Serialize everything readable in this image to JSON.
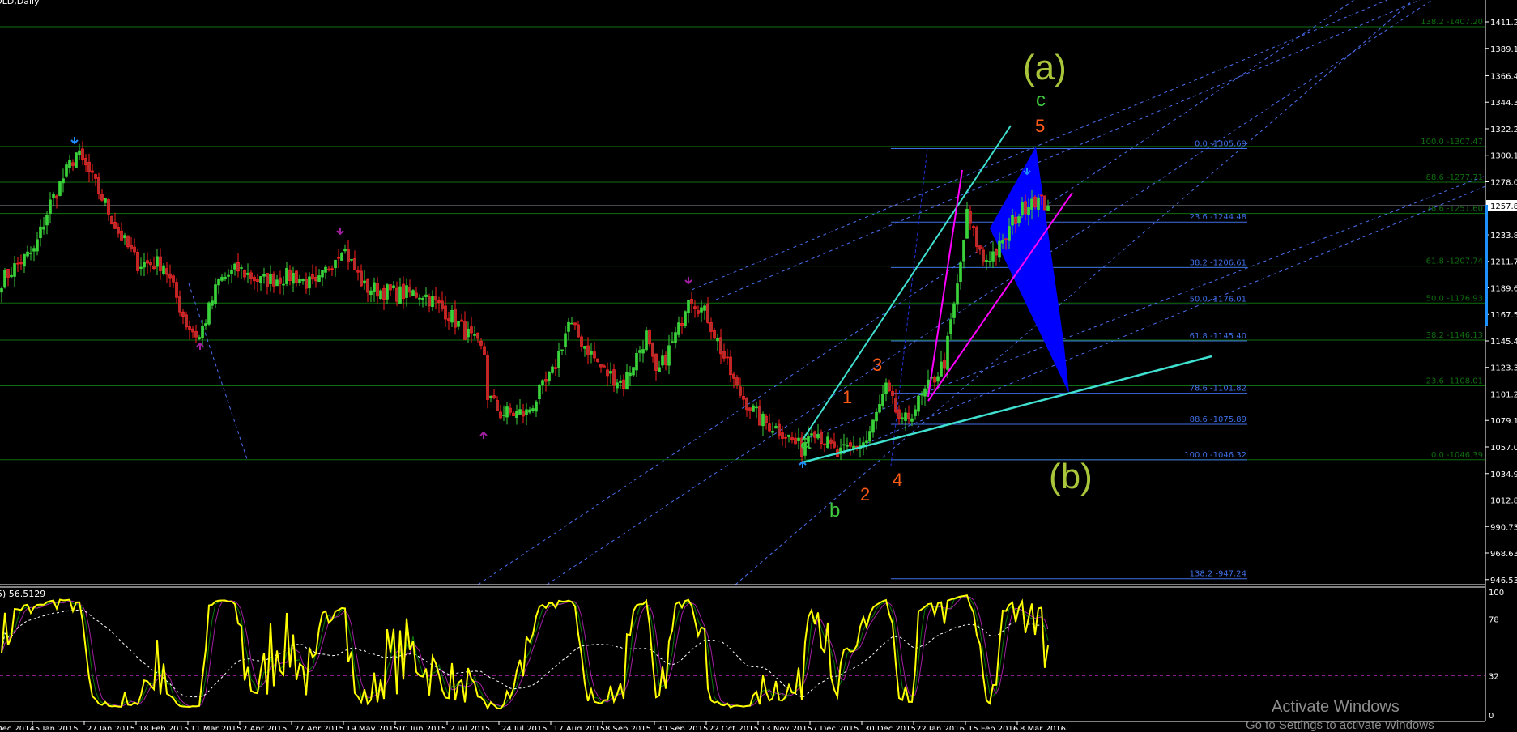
{
  "window": {
    "title": "OLD,Daily"
  },
  "indicator": {
    "label": "5) 56.5129",
    "value": 56.5129,
    "levels": [
      78,
      32
    ],
    "axis_labels": [
      "100",
      "78",
      "32",
      "0"
    ]
  },
  "wave_labels": {
    "big_a": "(a)",
    "big_b": "(b)",
    "small_a": "a",
    "small_b": "b",
    "small_c": "c",
    "n1": "1",
    "n2": "2",
    "n3": "3",
    "n4": "4",
    "n5": "5"
  },
  "watermark": {
    "line1": "Activate Windows",
    "line2": "Go to Settings to activate Windows"
  },
  "colors": {
    "background": "#000000",
    "bull": "#3ad23a",
    "bear": "#ff2020",
    "fib_green": "#0f6e0f",
    "fib_blue": "#3f6fe6",
    "trend_cyan": "#40e0d0",
    "trend_magenta": "#ff00ff",
    "pattern_blue": "#0000ff",
    "stoch_main": "#ffff00"
  },
  "chart_data": {
    "type": "candlestick",
    "title": "OLD,Daily",
    "ylim": [
      946.53,
      1420
    ],
    "grid": false,
    "y_tick_labels": [
      "1411.28",
      "1389.18",
      "1366.43",
      "1344.33",
      "1322.23",
      "1300.13",
      "1278.03",
      "1257.81",
      "1233.83",
      "1211.73",
      "1189.63",
      "1167.53",
      "1145.43",
      "1123.33",
      "1101.23",
      "1079.13",
      "1057.03",
      "1034.93",
      "1012.83",
      "990.73",
      "968.63",
      "946.53"
    ],
    "current_price": 1257.81,
    "x_tick_labels": [
      "12 Dec 2014",
      "5 Jan 2015",
      "27 Jan 2015",
      "18 Feb 2015",
      "11 Mar 2015",
      "2 Apr 2015",
      "27 Apr 2015",
      "19 May 2015",
      "10 Jun 2015",
      "2 Jul 2015",
      "24 Jul 2015",
      "17 Aug 2015",
      "8 Sep 2015",
      "30 Sep 2015",
      "22 Oct 2015",
      "13 Nov 2015",
      "7 Dec 2015",
      "30 Dec 2015",
      "22 Jan 2016",
      "15 Feb 2016",
      "8 Mar 2016"
    ],
    "approx_closes": [
      [
        "2014-12-22",
        1196
      ],
      [
        "2014-12-30",
        1212
      ],
      [
        "2015-01-05",
        1220
      ],
      [
        "2015-01-12",
        1260
      ],
      [
        "2015-01-22",
        1302
      ],
      [
        "2015-01-27",
        1290
      ],
      [
        "2015-02-03",
        1265
      ],
      [
        "2015-02-10",
        1236
      ],
      [
        "2015-02-18",
        1210
      ],
      [
        "2015-03-02",
        1210
      ],
      [
        "2015-03-11",
        1160
      ],
      [
        "2015-03-17",
        1148
      ],
      [
        "2015-03-25",
        1195
      ],
      [
        "2015-04-02",
        1205
      ],
      [
        "2015-04-13",
        1195
      ],
      [
        "2015-04-27",
        1200
      ],
      [
        "2015-05-06",
        1190
      ],
      [
        "2015-05-18",
        1225
      ],
      [
        "2015-05-27",
        1190
      ],
      [
        "2015-06-10",
        1185
      ],
      [
        "2015-06-22",
        1185
      ],
      [
        "2015-07-02",
        1168
      ],
      [
        "2015-07-17",
        1135
      ],
      [
        "2015-07-20",
        1100
      ],
      [
        "2015-07-24",
        1085
      ],
      [
        "2015-08-05",
        1085
      ],
      [
        "2015-08-17",
        1118
      ],
      [
        "2015-08-24",
        1160
      ],
      [
        "2015-09-08",
        1120
      ],
      [
        "2015-09-16",
        1110
      ],
      [
        "2015-09-25",
        1150
      ],
      [
        "2015-09-30",
        1115
      ],
      [
        "2015-10-09",
        1155
      ],
      [
        "2015-10-14",
        1185
      ],
      [
        "2015-10-22",
        1165
      ],
      [
        "2015-11-04",
        1105
      ],
      [
        "2015-11-13",
        1080
      ],
      [
        "2015-11-24",
        1070
      ],
      [
        "2015-12-02",
        1055
      ],
      [
        "2015-12-07",
        1075
      ],
      [
        "2015-12-17",
        1050
      ],
      [
        "2015-12-30",
        1062
      ],
      [
        "2016-01-07",
        1105
      ],
      [
        "2016-01-14",
        1075
      ],
      [
        "2016-01-22",
        1098
      ],
      [
        "2016-02-02",
        1128
      ],
      [
        "2016-02-08",
        1190
      ],
      [
        "2016-02-11",
        1250
      ],
      [
        "2016-02-18",
        1212
      ],
      [
        "2016-02-26",
        1225
      ],
      [
        "2016-03-02",
        1245
      ],
      [
        "2016-03-10",
        1265
      ],
      [
        "2016-03-17",
        1257.81
      ]
    ],
    "fib_green": [
      {
        "level": "138.2",
        "price": 1407.2
      },
      {
        "level": "100.0",
        "price": 1307.47
      },
      {
        "level": "88.6",
        "price": 1277.71
      },
      {
        "level": "78.6",
        "price": 1251.6
      },
      {
        "level": "61.8",
        "price": 1207.74
      },
      {
        "level": "50.0",
        "price": 1176.93
      },
      {
        "level": "38.2",
        "price": 1146.13
      },
      {
        "level": "23.6",
        "price": 1108.01
      },
      {
        "level": "0.0",
        "price": 1046.39
      }
    ],
    "fib_blue": [
      {
        "level": "0.0",
        "price": 1305.69
      },
      {
        "level": "23.6",
        "price": 1244.48
      },
      {
        "level": "38.2",
        "price": 1206.61
      },
      {
        "level": "50.0",
        "price": 1176.01
      },
      {
        "level": "61.8",
        "price": 1145.4
      },
      {
        "level": "78.6",
        "price": 1101.82
      },
      {
        "level": "88.6",
        "price": 1075.89
      },
      {
        "level": "100.0",
        "price": 1046.32
      },
      {
        "level": "138.2",
        "price": 947.24
      }
    ]
  }
}
